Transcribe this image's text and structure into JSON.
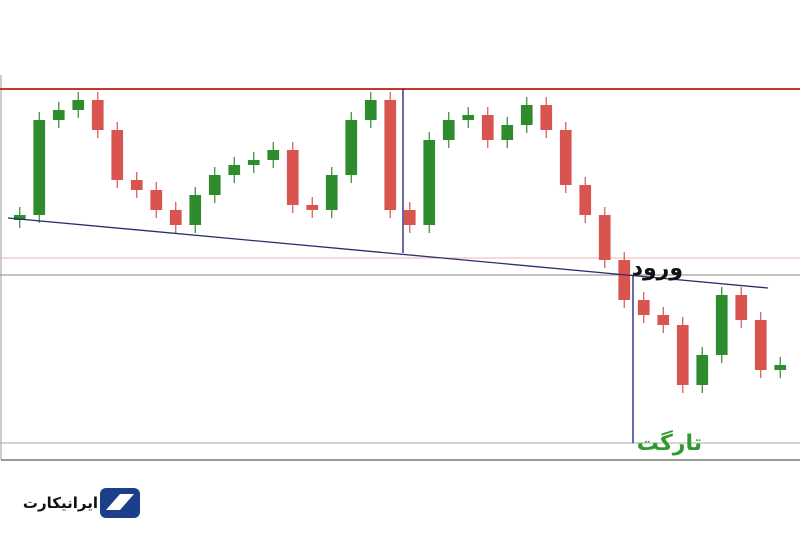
{
  "chart_data": {
    "type": "candlestick",
    "ylim": [
      0,
      385
    ],
    "open": [
      240,
      245,
      340,
      350,
      360,
      330,
      280,
      270,
      250,
      235,
      265,
      285,
      295,
      300,
      310,
      255,
      250,
      285,
      340,
      360,
      250,
      235,
      320,
      340,
      345,
      320,
      335,
      355,
      330,
      275,
      245,
      200,
      160,
      145,
      135,
      75,
      105,
      165,
      140,
      90
    ],
    "high": [
      253,
      348,
      358,
      368,
      368,
      338,
      288,
      278,
      258,
      273,
      293,
      303,
      308,
      318,
      318,
      263,
      293,
      348,
      368,
      368,
      258,
      328,
      348,
      353,
      353,
      343,
      363,
      363,
      338,
      283,
      253,
      208,
      168,
      153,
      143,
      113,
      173,
      173,
      148,
      103
    ],
    "low": [
      232,
      237,
      332,
      342,
      322,
      272,
      262,
      242,
      227,
      227,
      257,
      277,
      287,
      292,
      247,
      242,
      242,
      277,
      332,
      242,
      227,
      227,
      312,
      332,
      312,
      312,
      327,
      322,
      267,
      237,
      192,
      152,
      137,
      127,
      67,
      67,
      97,
      132,
      82,
      82
    ],
    "close": [
      245,
      340,
      350,
      360,
      330,
      280,
      270,
      250,
      235,
      265,
      285,
      295,
      300,
      310,
      255,
      250,
      285,
      340,
      360,
      250,
      235,
      320,
      340,
      345,
      320,
      335,
      355,
      330,
      275,
      245,
      200,
      160,
      145,
      135,
      75,
      105,
      165,
      140,
      90,
      95
    ],
    "up_color": "#2e8b2e",
    "down_color": "#d9534f",
    "annotations": [
      "ورود",
      "تارگت"
    ]
  },
  "logo": {
    "text": "ایرانیکارت"
  }
}
